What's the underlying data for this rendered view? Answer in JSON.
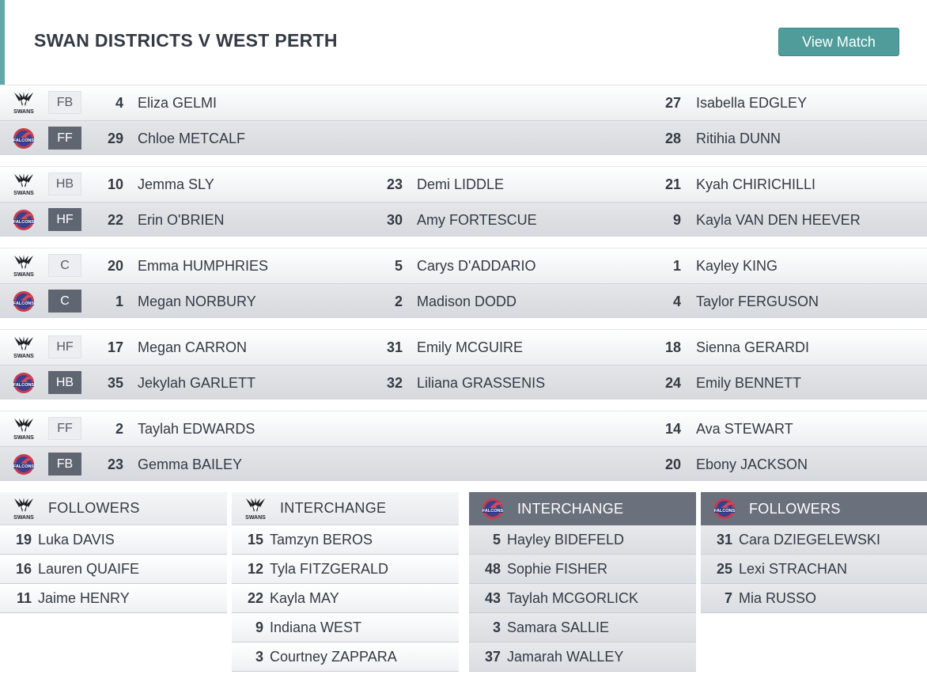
{
  "header": {
    "title": "SWAN DISTRICTS V WEST PERTH",
    "button_label": "View Match"
  },
  "colors": {
    "accent": "#4f9c9b",
    "away_row": "#5f6671",
    "falcons_panel": "#6b717c"
  },
  "teams": {
    "home_logo": "swans-logo",
    "away_logo": "falcons-logo",
    "home_logo_text": "SWANS",
    "away_logo_text": "FALCONS"
  },
  "lines": [
    {
      "home": {
        "pos": "FB",
        "players": [
          {
            "num": "4",
            "name": "Eliza GELMI"
          },
          {
            "num": "",
            "name": ""
          },
          {
            "num": "27",
            "name": "Isabella EDGLEY"
          }
        ]
      },
      "away": {
        "pos": "FF",
        "players": [
          {
            "num": "29",
            "name": "Chloe METCALF"
          },
          {
            "num": "",
            "name": ""
          },
          {
            "num": "28",
            "name": "Ritihia DUNN"
          }
        ]
      }
    },
    {
      "home": {
        "pos": "HB",
        "players": [
          {
            "num": "10",
            "name": "Jemma SLY"
          },
          {
            "num": "23",
            "name": "Demi LIDDLE"
          },
          {
            "num": "21",
            "name": "Kyah CHIRICHILLI"
          }
        ]
      },
      "away": {
        "pos": "HF",
        "players": [
          {
            "num": "22",
            "name": "Erin O'BRIEN"
          },
          {
            "num": "30",
            "name": "Amy FORTESCUE"
          },
          {
            "num": "9",
            "name": "Kayla VAN DEN HEEVER"
          }
        ]
      }
    },
    {
      "home": {
        "pos": "C",
        "players": [
          {
            "num": "20",
            "name": "Emma HUMPHRIES"
          },
          {
            "num": "5",
            "name": "Carys D'ADDARIO"
          },
          {
            "num": "1",
            "name": "Kayley KING"
          }
        ]
      },
      "away": {
        "pos": "C",
        "players": [
          {
            "num": "1",
            "name": "Megan NORBURY"
          },
          {
            "num": "2",
            "name": "Madison DODD"
          },
          {
            "num": "4",
            "name": "Taylor FERGUSON"
          }
        ]
      }
    },
    {
      "home": {
        "pos": "HF",
        "players": [
          {
            "num": "17",
            "name": "Megan CARRON"
          },
          {
            "num": "31",
            "name": "Emily MCGUIRE"
          },
          {
            "num": "18",
            "name": "Sienna GERARDI"
          }
        ]
      },
      "away": {
        "pos": "HB",
        "players": [
          {
            "num": "35",
            "name": "Jekylah GARLETT"
          },
          {
            "num": "32",
            "name": "Liliana GRASSENIS"
          },
          {
            "num": "24",
            "name": "Emily BENNETT"
          }
        ]
      }
    },
    {
      "home": {
        "pos": "FF",
        "players": [
          {
            "num": "2",
            "name": "Taylah EDWARDS"
          },
          {
            "num": "",
            "name": ""
          },
          {
            "num": "14",
            "name": "Ava STEWART"
          }
        ]
      },
      "away": {
        "pos": "FB",
        "players": [
          {
            "num": "23",
            "name": "Gemma BAILEY"
          },
          {
            "num": "",
            "name": ""
          },
          {
            "num": "20",
            "name": "Ebony JACKSON"
          }
        ]
      }
    }
  ],
  "panels": [
    {
      "team": "swans",
      "title": "FOLLOWERS",
      "players": [
        {
          "num": "19",
          "name": "Luka DAVIS"
        },
        {
          "num": "16",
          "name": "Lauren QUAIFE"
        },
        {
          "num": "11",
          "name": "Jaime HENRY"
        }
      ]
    },
    {
      "team": "swans",
      "title": "INTERCHANGE",
      "players": [
        {
          "num": "15",
          "name": "Tamzyn BEROS"
        },
        {
          "num": "12",
          "name": "Tyla FITZGERALD"
        },
        {
          "num": "22",
          "name": "Kayla MAY"
        },
        {
          "num": "9",
          "name": "Indiana WEST"
        },
        {
          "num": "3",
          "name": "Courtney ZAPPARA"
        }
      ]
    },
    {
      "team": "falcons",
      "title": "INTERCHANGE",
      "players": [
        {
          "num": "5",
          "name": "Hayley BIDEFELD"
        },
        {
          "num": "48",
          "name": "Sophie FISHER"
        },
        {
          "num": "43",
          "name": "Taylah MCGORLICK"
        },
        {
          "num": "3",
          "name": "Samara SALLIE"
        },
        {
          "num": "37",
          "name": "Jamarah WALLEY"
        }
      ]
    },
    {
      "team": "falcons",
      "title": "FOLLOWERS",
      "players": [
        {
          "num": "31",
          "name": "Cara DZIEGELEWSKI"
        },
        {
          "num": "25",
          "name": "Lexi STRACHAN"
        },
        {
          "num": "7",
          "name": "Mia RUSSO"
        }
      ]
    }
  ]
}
